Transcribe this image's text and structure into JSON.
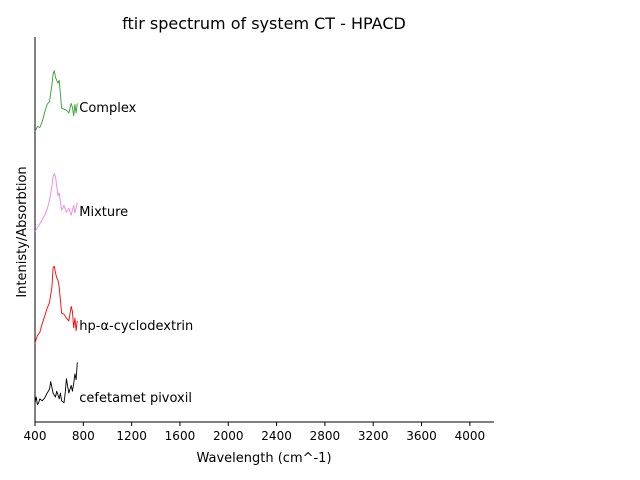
{
  "chart_data": {
    "type": "line",
    "title": "ftir spectrum of system CT - HPACD",
    "xlabel": "Wavelength (cm^-1)",
    "ylabel": "Intenisty/Absorbtion",
    "xlim": [
      400,
      4200
    ],
    "x_ticks": [
      400,
      800,
      1200,
      1600,
      2000,
      2400,
      2800,
      3200,
      3600,
      4000
    ],
    "x_tick_labels": [
      "400",
      "800",
      "1200",
      "1600",
      "2000",
      "2400",
      "2800",
      "3200",
      "3600",
      "4000"
    ],
    "ylim": [
      0,
      4
    ],
    "y_ticks_shown": false,
    "grid": false,
    "legend": "none",
    "series": [
      {
        "name": "Complex",
        "color": "#2ca02c",
        "x": [
          400,
          420,
          440,
          460,
          480,
          500,
          520,
          540,
          550,
          560,
          570,
          580,
          590,
          600,
          620,
          640,
          660,
          680,
          700,
          710,
          720,
          730,
          740,
          750
        ],
        "y": [
          3.02,
          3.07,
          3.06,
          3.12,
          3.22,
          3.3,
          3.33,
          3.5,
          3.62,
          3.65,
          3.58,
          3.55,
          3.52,
          3.55,
          3.26,
          3.25,
          3.24,
          3.21,
          3.31,
          3.27,
          3.18,
          3.3,
          3.21,
          3.31
        ]
      },
      {
        "name": "Mixture",
        "color": "#ee82ee",
        "x": [
          400,
          420,
          440,
          460,
          480,
          500,
          520,
          540,
          550,
          560,
          570,
          580,
          590,
          600,
          620,
          640,
          660,
          680,
          700,
          710,
          720,
          730,
          740,
          750
        ],
        "y": [
          1.98,
          2.02,
          2.06,
          2.1,
          2.15,
          2.21,
          2.3,
          2.45,
          2.55,
          2.58,
          2.55,
          2.45,
          2.35,
          2.38,
          2.2,
          2.25,
          2.18,
          2.22,
          2.15,
          2.2,
          2.25,
          2.17,
          2.22,
          2.28
        ]
      },
      {
        "name": "hp-α-cyclodextrin",
        "color": "#ff0000",
        "x": [
          400,
          420,
          440,
          460,
          480,
          500,
          520,
          540,
          550,
          560,
          570,
          580,
          590,
          600,
          620,
          640,
          660,
          680,
          700,
          710,
          720,
          730,
          740,
          750
        ],
        "y": [
          0.82,
          0.9,
          0.93,
          1.02,
          1.1,
          1.18,
          1.24,
          1.4,
          1.6,
          1.62,
          1.55,
          1.5,
          1.47,
          1.4,
          1.13,
          1.12,
          1.08,
          1.05,
          1.2,
          1.15,
          0.98,
          1.08,
          0.95,
          1.05
        ]
      },
      {
        "name": "cefetamet pivoxil",
        "color": "#000000",
        "x": [
          400,
          410,
          420,
          430,
          440,
          460,
          480,
          500,
          520,
          530,
          540,
          550,
          560,
          570,
          580,
          590,
          600,
          610,
          620,
          640,
          650,
          660,
          680,
          700,
          710,
          720,
          730,
          740,
          750
        ],
        "y": [
          0.2,
          0.26,
          0.18,
          0.2,
          0.24,
          0.22,
          0.25,
          0.3,
          0.34,
          0.42,
          0.36,
          0.3,
          0.28,
          0.26,
          0.32,
          0.28,
          0.24,
          0.3,
          0.22,
          0.2,
          0.3,
          0.45,
          0.3,
          0.38,
          0.32,
          0.4,
          0.5,
          0.44,
          0.62
        ]
      }
    ]
  }
}
